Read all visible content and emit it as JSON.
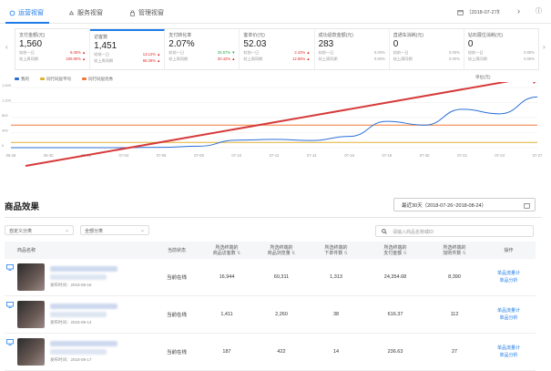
{
  "tabs": [
    {
      "label": "运营视窗",
      "active": true
    },
    {
      "label": "服务视窗",
      "active": false
    },
    {
      "label": "管理视窗",
      "active": false
    }
  ],
  "date": "（2018-07-27）",
  "metrics": [
    {
      "label": "支付金额(元)",
      "value": "1,560",
      "row1_label": "较前一日",
      "row1_val": "6.05%",
      "row1_dir": "up",
      "row2_label": "较上周同期",
      "row2_val": "190.80%",
      "row2_dir": "up"
    },
    {
      "label": "访客数",
      "value": "1,451",
      "row1_label": "较前一日",
      "row1_val": "13.12%",
      "row1_dir": "up",
      "row2_label": "较上周同期",
      "row2_val": "68.28%",
      "row2_dir": "up"
    },
    {
      "label": "支付转化率",
      "value": "2.07%",
      "row1_label": "较前一日",
      "row1_val": "26.57%",
      "row1_dir": "down",
      "row2_label": "较上周同期",
      "row2_val": "30.42%",
      "row2_dir": "up"
    },
    {
      "label": "客单价(元)",
      "value": "52.03",
      "row1_label": "较前一日",
      "row1_val": "2.42%",
      "row1_dir": "up",
      "row2_label": "较上周同期",
      "row2_val": "12.86%",
      "row2_dir": "up"
    },
    {
      "label": "成功退款金额(元)",
      "value": "283",
      "row1_label": "较前一日",
      "row1_val": "0.00%",
      "row1_dir": "",
      "row2_label": "较上周同期",
      "row2_val": "0.00%",
      "row2_dir": ""
    },
    {
      "label": "直通车消耗(元)",
      "value": "0",
      "row1_label": "较前一日",
      "row1_val": "0.00%",
      "row1_dir": "",
      "row2_label": "较上周同期",
      "row2_val": "0.00%",
      "row2_dir": ""
    },
    {
      "label": "钻石展位消耗(元)",
      "value": "0",
      "row1_label": "较前一日",
      "row1_val": "0.00%",
      "row1_dir": "",
      "row2_label": "较上周同期",
      "row2_val": "0.00%",
      "row2_dir": ""
    }
  ],
  "chart_data": {
    "type": "line",
    "legend": [
      "我的",
      "同行同层平均",
      "同行同层优秀"
    ],
    "legend_right": "单位(元)",
    "x": [
      "06-28",
      "06-30",
      "07-02",
      "07-04",
      "07-06",
      "07-08",
      "07-10",
      "07-12",
      "07-14",
      "07-16",
      "07-18",
      "07-20",
      "07-22",
      "07-24",
      "07-27"
    ],
    "ylabels": [
      "1,600",
      "1,200",
      "800",
      "400",
      "0"
    ],
    "ylim": [
      0,
      1600
    ],
    "series": [
      {
        "name": "我的",
        "color": "#2b6fd6",
        "values": [
          0,
          0,
          0,
          0,
          10,
          40,
          200,
          220,
          190,
          300,
          700,
          600,
          1020,
          900,
          1350
        ]
      },
      {
        "name": "同行同层平均",
        "color": "#e0b030",
        "values": [
          140,
          140,
          140,
          140,
          140,
          140,
          140,
          140,
          140,
          140,
          140,
          140,
          140,
          140,
          140
        ]
      },
      {
        "name": "同行同层优秀",
        "color": "#f07a3a",
        "values": [
          600,
          600,
          600,
          600,
          600,
          600,
          600,
          600,
          600,
          600,
          600,
          600,
          600,
          600,
          600
        ]
      }
    ]
  },
  "products": {
    "title": "商品效果",
    "date_range": "最近30天（2018-07-26~2018-08-24）",
    "filter1": "自定义分类",
    "filter2": "全部分类",
    "search_placeholder": "请输入商品名称或ID",
    "headers": [
      {
        "l1": "商品名称",
        "l2": ""
      },
      {
        "l1": "当前状态",
        "l2": ""
      },
      {
        "l1": "所选终端的",
        "l2": "商品访客数"
      },
      {
        "l1": "所选终端的",
        "l2": "商品浏览量"
      },
      {
        "l1": "所选终端的",
        "l2": "下单件数"
      },
      {
        "l1": "所选终端的",
        "l2": "支付金额"
      },
      {
        "l1": "所选终端的",
        "l2": "加购件数"
      },
      {
        "l1": "操作",
        "l2": ""
      }
    ],
    "rows": [
      {
        "pub": "发布时间：2018-08-16",
        "status": "当前在线",
        "visitors": "16,944",
        "views": "60,311",
        "orders": "1,313",
        "amount": "24,354.68",
        "cart": "8,390",
        "op1": "单品流量计",
        "op2": "单品分析"
      },
      {
        "pub": "发布时间：2018-08-14",
        "status": "当前在线",
        "visitors": "1,411",
        "views": "2,260",
        "orders": "38",
        "amount": "616.37",
        "cart": "112",
        "op1": "单品流量计",
        "op2": "单品分析"
      },
      {
        "pub": "发布时间：2018-08-17",
        "status": "当前在线",
        "visitors": "187",
        "views": "422",
        "orders": "14",
        "amount": "236.63",
        "cart": "27",
        "op1": "单品流量计",
        "op2": "单品分析"
      }
    ]
  }
}
